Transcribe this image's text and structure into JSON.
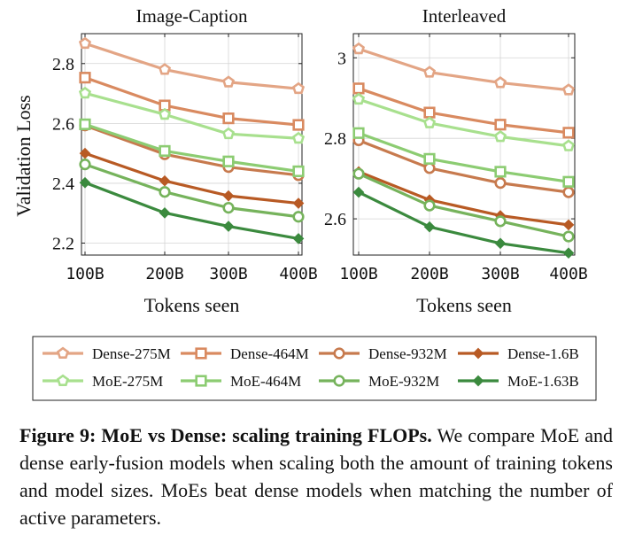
{
  "chart_data": [
    {
      "type": "line",
      "title": "Image-Caption",
      "xlabel": "Tokens seen",
      "ylabel": "Validation Loss",
      "categories": [
        "100B",
        "200B",
        "300B",
        "400B"
      ],
      "ylim": [
        2.16,
        2.9
      ],
      "yticks": [
        2.2,
        2.4,
        2.6,
        2.8
      ],
      "grid": true,
      "series": [
        {
          "name": "Dense-275M",
          "values": [
            2.867,
            2.78,
            2.738,
            2.716
          ]
        },
        {
          "name": "Dense-464M",
          "values": [
            2.753,
            2.66,
            2.617,
            2.595
          ]
        },
        {
          "name": "Dense-932M",
          "values": [
            2.593,
            2.497,
            2.454,
            2.427
          ]
        },
        {
          "name": "Dense-1.6B",
          "values": [
            2.5,
            2.408,
            2.358,
            2.333
          ]
        },
        {
          "name": "MoE-275M",
          "values": [
            2.701,
            2.63,
            2.565,
            2.55
          ]
        },
        {
          "name": "MoE-464M",
          "values": [
            2.597,
            2.508,
            2.473,
            2.44
          ]
        },
        {
          "name": "MoE-932M",
          "values": [
            2.463,
            2.371,
            2.318,
            2.288
          ]
        },
        {
          "name": "MoE-1.63B",
          "values": [
            2.402,
            2.301,
            2.256,
            2.215
          ]
        }
      ]
    },
    {
      "type": "line",
      "title": "Interleaved",
      "xlabel": "Tokens seen",
      "ylabel": "",
      "categories": [
        "100B",
        "200B",
        "300B",
        "400B"
      ],
      "ylim": [
        2.51,
        3.06
      ],
      "yticks": [
        2.6,
        2.8,
        3.0
      ],
      "yticklabels": [
        "2.6",
        "2.8",
        "3"
      ],
      "grid": true,
      "series": [
        {
          "name": "Dense-275M",
          "values": [
            3.022,
            2.964,
            2.938,
            2.92
          ]
        },
        {
          "name": "Dense-464M",
          "values": [
            2.924,
            2.864,
            2.834,
            2.814
          ]
        },
        {
          "name": "Dense-932M",
          "values": [
            2.795,
            2.726,
            2.689,
            2.666
          ]
        },
        {
          "name": "Dense-1.6B",
          "values": [
            2.717,
            2.647,
            2.608,
            2.585
          ]
        },
        {
          "name": "MoE-275M",
          "values": [
            2.897,
            2.838,
            2.804,
            2.781
          ]
        },
        {
          "name": "MoE-464M",
          "values": [
            2.813,
            2.749,
            2.717,
            2.692
          ]
        },
        {
          "name": "MoE-932M",
          "values": [
            2.712,
            2.633,
            2.594,
            2.556
          ]
        },
        {
          "name": "MoE-1.63B",
          "values": [
            2.666,
            2.58,
            2.539,
            2.515
          ]
        }
      ]
    }
  ],
  "legend": {
    "placement": "bottom",
    "entries": [
      {
        "name": "Dense-275M",
        "color": "#e3a585",
        "marker": "pentagon"
      },
      {
        "name": "Dense-464M",
        "color": "#d98a60",
        "marker": "square"
      },
      {
        "name": "Dense-932M",
        "color": "#c77a4e",
        "marker": "circle"
      },
      {
        "name": "Dense-1.6B",
        "color": "#b85a24",
        "marker": "diamond"
      },
      {
        "name": "MoE-275M",
        "color": "#a8e08e",
        "marker": "pentagon"
      },
      {
        "name": "MoE-464M",
        "color": "#8ccc72",
        "marker": "square"
      },
      {
        "name": "MoE-932M",
        "color": "#76b35c",
        "marker": "circle"
      },
      {
        "name": "MoE-1.63B",
        "color": "#3b8a3e",
        "marker": "diamond"
      }
    ]
  },
  "caption": {
    "label": "Figure 9: MoE vs Dense: scaling training FLOPs.",
    "text": " We compare MoE and dense early-fusion models when scaling both the amount of training tokens and model sizes.  MoEs beat dense models when matching the number of active parameters."
  }
}
